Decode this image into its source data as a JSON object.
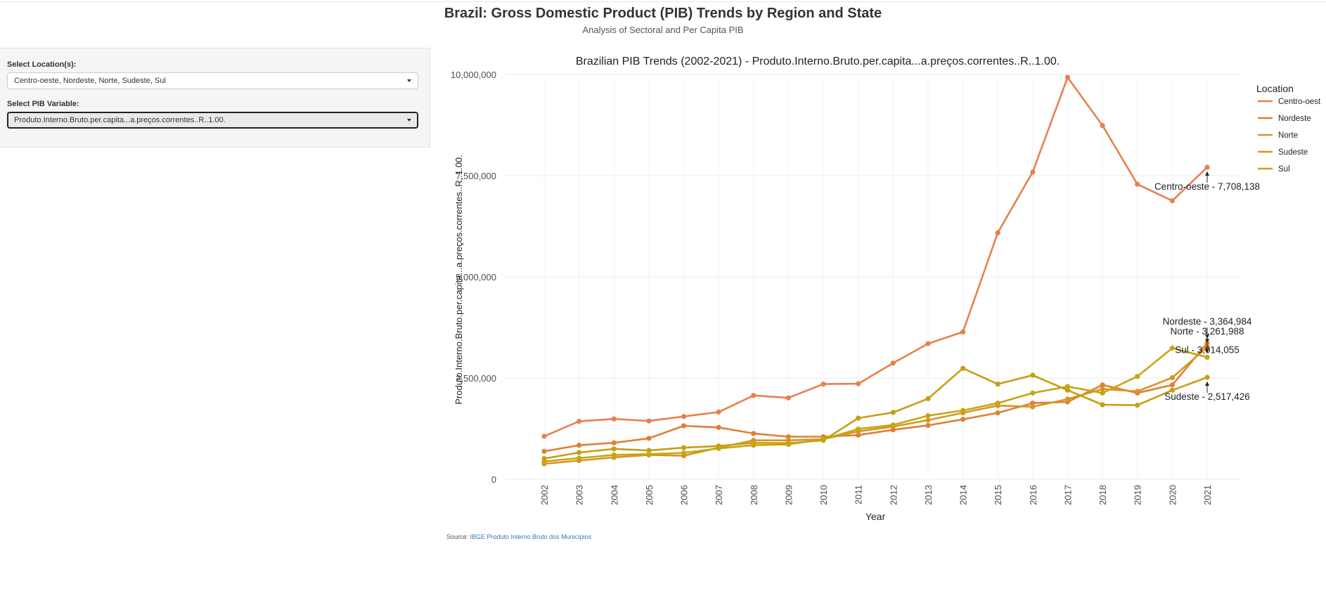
{
  "header": {
    "title": "Brazil: Gross Domestic Product (PIB) Trends by Region and State",
    "subtitle": "Analysis of Sectoral and Per Capita PIB"
  },
  "sidebar": {
    "location_label": "Select Location(s):",
    "location_value": "Centro-oeste, Nordeste, Norte, Sudeste, Sul",
    "variable_label": "Select PIB Variable:",
    "variable_value": "Produto.Interno.Bruto.per.capita...a.preços.correntes..R..1.00."
  },
  "source": {
    "prefix": "Source: ",
    "link_text": "IBGE Produto Interno Bruto dos Municípios"
  },
  "chart_data": {
    "type": "line",
    "title": "Brazilian PIB Trends (2002-2021) - Produto.Interno.Bruto.per.capita...a.preços.correntes..R..1.00.",
    "xlabel": "Year",
    "ylabel": "Produto.Interno.Bruto.per.capita...a.preços.correntes..R..1.00.",
    "x": [
      "2002",
      "2003",
      "2004",
      "2005",
      "2006",
      "2007",
      "2008",
      "2009",
      "2010",
      "2011",
      "2012",
      "2013",
      "2014",
      "2015",
      "2016",
      "2017",
      "2018",
      "2019",
      "2020",
      "2021"
    ],
    "ylim": [
      0,
      10400000
    ],
    "yticks": [
      0,
      2500000,
      5000000,
      7500000,
      10000000
    ],
    "ytick_labels": [
      "0",
      "2,500,000",
      "5,000,000",
      "7,500,000",
      "10,000,000"
    ],
    "grid": true,
    "legend": {
      "title": "Location",
      "position": "top-right"
    },
    "series": [
      {
        "name": "Centro-oeste",
        "color": "#E8804E",
        "values": [
          1060000,
          1430000,
          1490000,
          1440000,
          1550000,
          1660000,
          2070000,
          2010000,
          2350000,
          2360000,
          2870000,
          3350000,
          3640000,
          6090000,
          7590000,
          9930000,
          8740000,
          7290000,
          6880000,
          7708138
        ]
      },
      {
        "name": "Nordeste",
        "color": "#E07F35",
        "values": [
          690000,
          840000,
          900000,
          1010000,
          1320000,
          1280000,
          1130000,
          1050000,
          1050000,
          1090000,
          1220000,
          1330000,
          1480000,
          1640000,
          1880000,
          1910000,
          2330000,
          2130000,
          2330000,
          3364984
        ]
      },
      {
        "name": "Norte",
        "color": "#D89424",
        "values": [
          380000,
          460000,
          540000,
          600000,
          580000,
          780000,
          960000,
          960000,
          990000,
          1180000,
          1300000,
          1460000,
          1640000,
          1820000,
          1790000,
          1980000,
          2230000,
          2170000,
          2510000,
          3261988
        ]
      },
      {
        "name": "Sudeste",
        "color": "#C69E12",
        "values": [
          510000,
          660000,
          750000,
          710000,
          780000,
          820000,
          900000,
          890000,
          960000,
          1510000,
          1650000,
          1990000,
          2740000,
          2350000,
          2570000,
          2200000,
          1840000,
          1830000,
          2200000,
          2517426
        ]
      },
      {
        "name": "Sul",
        "color": "#C4A610",
        "values": [
          440000,
          520000,
          600000,
          620000,
          650000,
          760000,
          840000,
          860000,
          990000,
          1240000,
          1340000,
          1570000,
          1700000,
          1880000,
          2130000,
          2290000,
          2130000,
          2540000,
          3240000,
          3014055
        ]
      }
    ],
    "annotations": [
      {
        "series": "Centro-oeste",
        "x": "2021",
        "text": "Centro-oeste - 7,708,138",
        "placement": "below"
      },
      {
        "series": "Nordeste",
        "x": "2021",
        "text": "Nordeste - 3,364,984",
        "placement": "above"
      },
      {
        "series": "Norte",
        "x": "2021",
        "text": "Norte - 3,261,988",
        "placement": "above"
      },
      {
        "series": "Sul",
        "x": "2021",
        "text": "Sul - 3,014,055",
        "placement": "above"
      },
      {
        "series": "Sudeste",
        "x": "2021",
        "text": "Sudeste - 2,517,426",
        "placement": "below"
      }
    ]
  }
}
